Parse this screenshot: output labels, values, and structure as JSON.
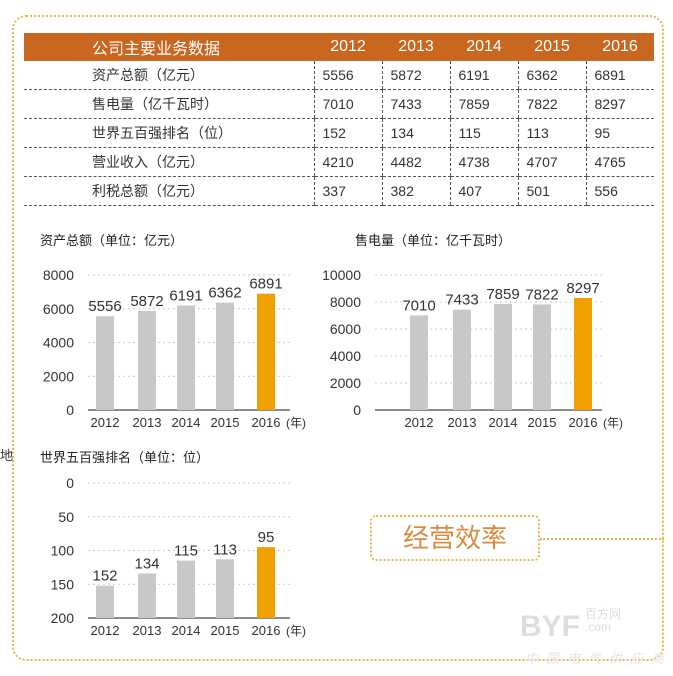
{
  "table": {
    "header": "公司主要业务数据",
    "years": [
      "2012",
      "2013",
      "2014",
      "2015",
      "2016"
    ],
    "rows": [
      {
        "label": "资产总额（亿元）",
        "values": [
          "5556",
          "5872",
          "6191",
          "6362",
          "6891"
        ]
      },
      {
        "label": "售电量（亿千瓦时）",
        "values": [
          "7010",
          "7433",
          "7859",
          "7822",
          "8297"
        ]
      },
      {
        "label": "世界五百强排名（位）",
        "values": [
          "152",
          "134",
          "115",
          "113",
          "95"
        ]
      },
      {
        "label": "营业收入（亿元）",
        "values": [
          "4210",
          "4482",
          "4738",
          "4707",
          "4765"
        ]
      },
      {
        "label": "利税总额（亿元）",
        "values": [
          "337",
          "382",
          "407",
          "501",
          "556"
        ]
      }
    ]
  },
  "colors": {
    "header": "#c9661f",
    "bar": "#c8c8c8",
    "highlight": "#f0a000",
    "border": "#e8b54a"
  },
  "chart_data": [
    {
      "type": "bar",
      "title": "资产总额（单位：亿元）",
      "categories": [
        "2012",
        "2013",
        "2014",
        "2015",
        "2016"
      ],
      "x_unit": "(年)",
      "values": [
        5556,
        5872,
        6191,
        6362,
        6891
      ],
      "ylim": [
        0,
        8000
      ],
      "yticks": [
        0,
        2000,
        4000,
        6000,
        8000
      ],
      "highlight": "2016",
      "grid": true
    },
    {
      "type": "bar",
      "title": "售电量（单位：亿千瓦时）",
      "categories": [
        "2012",
        "2013",
        "2014",
        "2015",
        "2016"
      ],
      "x_unit": "(年)",
      "values": [
        7010,
        7433,
        7859,
        7822,
        8297
      ],
      "ylim": [
        0,
        10000
      ],
      "yticks": [
        0,
        2000,
        4000,
        6000,
        8000,
        10000
      ],
      "highlight": "2016",
      "grid": true
    },
    {
      "type": "bar",
      "title": "世界五百强排名（单位：位）",
      "categories": [
        "2012",
        "2013",
        "2014",
        "2015",
        "2016"
      ],
      "x_unit": "(年)",
      "values": [
        152,
        134,
        115,
        113,
        95
      ],
      "ylim": [
        200,
        0
      ],
      "yticks": [
        0,
        50,
        100,
        150,
        200
      ],
      "inverted_axis": true,
      "highlight": "2016",
      "grid": true
    }
  ],
  "badge": "经营效率",
  "stray_text": "地",
  "watermark": {
    "logo": "BYF",
    "cn": "百方网",
    "dotcom": ".com",
    "slogan": "中国电气供应商"
  }
}
